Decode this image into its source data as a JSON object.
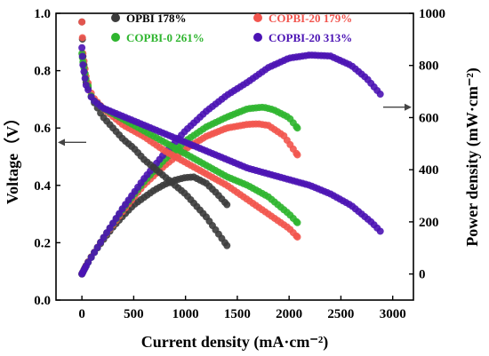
{
  "chart_data": {
    "type": "scatter",
    "xlabel": "Current density (mA·cm⁻²)",
    "ylabel_left": "Voltage（V）",
    "ylabel_right": "Power density (mW·cm⁻²)",
    "xlim": [
      -250,
      3200
    ],
    "ylim_left": [
      0.0,
      1.0
    ],
    "ylim_right": [
      -100,
      1000
    ],
    "x_ticks": [
      0,
      500,
      1000,
      1500,
      2000,
      2500,
      3000
    ],
    "y_left_ticks": [
      0.0,
      0.2,
      0.4,
      0.6,
      0.8,
      1.0
    ],
    "y_right_ticks": [
      0,
      200,
      400,
      600,
      800,
      1000
    ],
    "grid": false,
    "legend_position": "top",
    "series": [
      {
        "name": "OPBI 178%",
        "color": "#3c3c3c",
        "x_max": 1400,
        "voltage": [
          [
            0,
            0.97
          ],
          [
            10,
            0.85
          ],
          [
            40,
            0.76
          ],
          [
            100,
            0.7
          ],
          [
            200,
            0.64
          ],
          [
            300,
            0.6
          ],
          [
            400,
            0.56
          ],
          [
            500,
            0.53
          ],
          [
            600,
            0.49
          ],
          [
            700,
            0.46
          ],
          [
            800,
            0.43
          ],
          [
            900,
            0.4
          ],
          [
            1000,
            0.37
          ],
          [
            1100,
            0.33
          ],
          [
            1200,
            0.29
          ],
          [
            1300,
            0.24
          ],
          [
            1400,
            0.19
          ]
        ],
        "power": [
          [
            0,
            0
          ],
          [
            50,
            40
          ],
          [
            100,
            72
          ],
          [
            200,
            128
          ],
          [
            300,
            180
          ],
          [
            400,
            224
          ],
          [
            500,
            265
          ],
          [
            600,
            294
          ],
          [
            700,
            322
          ],
          [
            800,
            344
          ],
          [
            900,
            360
          ],
          [
            1000,
            370
          ],
          [
            1080,
            372
          ],
          [
            1200,
            348
          ],
          [
            1300,
            310
          ],
          [
            1400,
            266
          ]
        ]
      },
      {
        "name": "COPBI-20 179%",
        "color": "#f2554e",
        "x_max": 2080,
        "voltage": [
          [
            0,
            0.97
          ],
          [
            10,
            0.86
          ],
          [
            40,
            0.78
          ],
          [
            100,
            0.71
          ],
          [
            200,
            0.67
          ],
          [
            400,
            0.61
          ],
          [
            600,
            0.57
          ],
          [
            800,
            0.52
          ],
          [
            1000,
            0.48
          ],
          [
            1200,
            0.44
          ],
          [
            1400,
            0.4
          ],
          [
            1600,
            0.35
          ],
          [
            1800,
            0.3
          ],
          [
            2000,
            0.25
          ],
          [
            2080,
            0.22
          ]
        ],
        "power": [
          [
            0,
            0
          ],
          [
            50,
            40
          ],
          [
            100,
            71
          ],
          [
            200,
            134
          ],
          [
            400,
            244
          ],
          [
            600,
            342
          ],
          [
            800,
            416
          ],
          [
            1000,
            480
          ],
          [
            1200,
            528
          ],
          [
            1400,
            560
          ],
          [
            1600,
            574
          ],
          [
            1700,
            576
          ],
          [
            1800,
            570
          ],
          [
            1950,
            530
          ],
          [
            2080,
            457
          ]
        ]
      },
      {
        "name": "COPBI-0 261%",
        "color": "#2fb52f",
        "x_max": 2080,
        "voltage": [
          [
            0,
            0.86
          ],
          [
            10,
            0.83
          ],
          [
            40,
            0.77
          ],
          [
            100,
            0.7
          ],
          [
            200,
            0.67
          ],
          [
            400,
            0.63
          ],
          [
            600,
            0.59
          ],
          [
            800,
            0.55
          ],
          [
            1000,
            0.51
          ],
          [
            1200,
            0.47
          ],
          [
            1400,
            0.43
          ],
          [
            1600,
            0.4
          ],
          [
            1800,
            0.36
          ],
          [
            2000,
            0.3
          ],
          [
            2080,
            0.27
          ]
        ],
        "power": [
          [
            0,
            0
          ],
          [
            50,
            38
          ],
          [
            100,
            70
          ],
          [
            200,
            134
          ],
          [
            400,
            252
          ],
          [
            600,
            354
          ],
          [
            800,
            440
          ],
          [
            1000,
            510
          ],
          [
            1200,
            564
          ],
          [
            1400,
            602
          ],
          [
            1600,
            634
          ],
          [
            1750,
            640
          ],
          [
            1850,
            630
          ],
          [
            2000,
            600
          ],
          [
            2080,
            560
          ]
        ]
      },
      {
        "name": "COPBI-20 313%",
        "color": "#4b13b4",
        "x_max": 2880,
        "voltage": [
          [
            0,
            0.88
          ],
          [
            10,
            0.82
          ],
          [
            40,
            0.75
          ],
          [
            100,
            0.7
          ],
          [
            200,
            0.67
          ],
          [
            400,
            0.64
          ],
          [
            600,
            0.61
          ],
          [
            800,
            0.58
          ],
          [
            1000,
            0.55
          ],
          [
            1200,
            0.52
          ],
          [
            1400,
            0.49
          ],
          [
            1600,
            0.46
          ],
          [
            1800,
            0.44
          ],
          [
            2000,
            0.42
          ],
          [
            2200,
            0.4
          ],
          [
            2400,
            0.37
          ],
          [
            2600,
            0.33
          ],
          [
            2800,
            0.27
          ],
          [
            2880,
            0.24
          ]
        ],
        "power": [
          [
            0,
            0
          ],
          [
            50,
            38
          ],
          [
            100,
            70
          ],
          [
            200,
            134
          ],
          [
            400,
            256
          ],
          [
            600,
            366
          ],
          [
            800,
            464
          ],
          [
            1000,
            550
          ],
          [
            1200,
            624
          ],
          [
            1400,
            686
          ],
          [
            1600,
            736
          ],
          [
            1800,
            792
          ],
          [
            2000,
            828
          ],
          [
            2200,
            840
          ],
          [
            2400,
            836
          ],
          [
            2600,
            800
          ],
          [
            2750,
            750
          ],
          [
            2880,
            690
          ]
        ]
      }
    ],
    "arrows": [
      {
        "axis": "left",
        "direction": "left",
        "y": 0.55
      },
      {
        "axis": "right",
        "direction": "right",
        "y": 640
      }
    ]
  }
}
